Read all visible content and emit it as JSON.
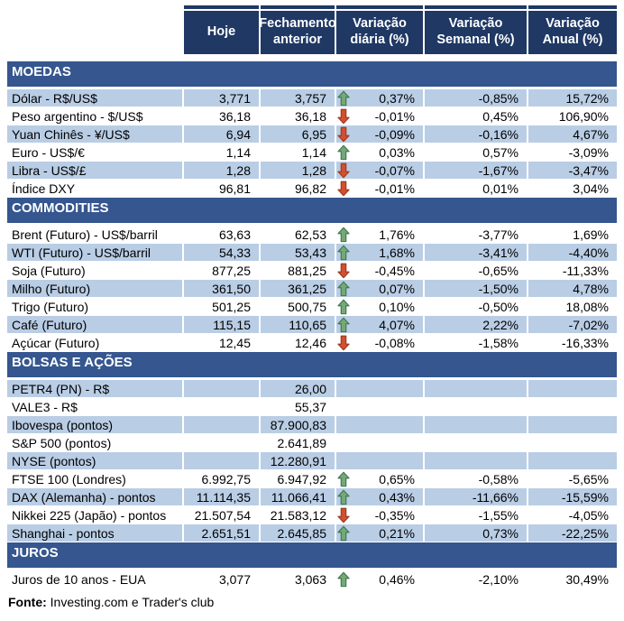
{
  "chart_data": {
    "type": "table",
    "columns": [
      "",
      "Hoje",
      "Fechamento anterior",
      "Variação diária (%)",
      "Variação Semanal (%)",
      "Variação Anual (%)"
    ],
    "sections": [
      {
        "title": "MOEDAS",
        "rows": [
          {
            "label": "Dólar - R$/US$",
            "hoje": "3,771",
            "fechamento": "3,757",
            "arrow": "up",
            "daily": "0,37%",
            "weekly": "-0,85%",
            "annual": "15,72%",
            "shaded": true
          },
          {
            "label": "Peso argentino - $/US$",
            "hoje": "36,18",
            "fechamento": "36,18",
            "arrow": "down",
            "daily": "-0,01%",
            "weekly": "0,45%",
            "annual": "106,90%",
            "shaded": false
          },
          {
            "label": "Yuan Chinês - ¥/US$",
            "hoje": "6,94",
            "fechamento": "6,95",
            "arrow": "down",
            "daily": "-0,09%",
            "weekly": "-0,16%",
            "annual": "4,67%",
            "shaded": true
          },
          {
            "label": "Euro - US$/€",
            "hoje": "1,14",
            "fechamento": "1,14",
            "arrow": "up",
            "daily": "0,03%",
            "weekly": "0,57%",
            "annual": "-3,09%",
            "shaded": false
          },
          {
            "label": "Libra - US$/£",
            "hoje": "1,28",
            "fechamento": "1,28",
            "arrow": "down",
            "daily": "-0,07%",
            "weekly": "-1,67%",
            "annual": "-3,47%",
            "shaded": true
          },
          {
            "label": "Índice DXY",
            "hoje": "96,81",
            "fechamento": "96,82",
            "arrow": "down",
            "daily": "-0,01%",
            "weekly": "0,01%",
            "annual": "3,04%",
            "shaded": false
          }
        ]
      },
      {
        "title": "COMMODITIES",
        "rows": [
          {
            "label": "Brent (Futuro) - US$/barril",
            "hoje": "63,63",
            "fechamento": "62,53",
            "arrow": "up",
            "daily": "1,76%",
            "weekly": "-3,77%",
            "annual": "1,69%",
            "shaded": false
          },
          {
            "label": "WTI (Futuro) - US$/barril",
            "hoje": "54,33",
            "fechamento": "53,43",
            "arrow": "up",
            "daily": "1,68%",
            "weekly": "-3,41%",
            "annual": "-4,40%",
            "shaded": true
          },
          {
            "label": "Soja (Futuro)",
            "hoje": "877,25",
            "fechamento": "881,25",
            "arrow": "down",
            "daily": "-0,45%",
            "weekly": "-0,65%",
            "annual": "-11,33%",
            "shaded": false
          },
          {
            "label": "Milho (Futuro)",
            "hoje": "361,50",
            "fechamento": "361,25",
            "arrow": "up",
            "daily": "0,07%",
            "weekly": "-1,50%",
            "annual": "4,78%",
            "shaded": true
          },
          {
            "label": "Trigo (Futuro)",
            "hoje": "501,25",
            "fechamento": "500,75",
            "arrow": "up",
            "daily": "0,10%",
            "weekly": "-0,50%",
            "annual": "18,08%",
            "shaded": false
          },
          {
            "label": "Café (Futuro)",
            "hoje": "115,15",
            "fechamento": "110,65",
            "arrow": "up",
            "daily": "4,07%",
            "weekly": "2,22%",
            "annual": "-7,02%",
            "shaded": true
          },
          {
            "label": "Açúcar (Futuro)",
            "hoje": "12,45",
            "fechamento": "12,46",
            "arrow": "down",
            "daily": "-0,08%",
            "weekly": "-1,58%",
            "annual": "-16,33%",
            "shaded": false
          }
        ]
      },
      {
        "title": "BOLSAS E AÇÕES",
        "rows": [
          {
            "label": "PETR4 (PN) - R$",
            "hoje": "",
            "fechamento": "26,00",
            "arrow": null,
            "daily": "",
            "weekly": "",
            "annual": "",
            "shaded": true
          },
          {
            "label": "VALE3 - R$",
            "hoje": "",
            "fechamento": "55,37",
            "arrow": null,
            "daily": "",
            "weekly": "",
            "annual": "",
            "shaded": false
          },
          {
            "label": "Ibovespa (pontos)",
            "hoje": "",
            "fechamento": "87.900,83",
            "arrow": null,
            "daily": "",
            "weekly": "",
            "annual": "",
            "shaded": true
          },
          {
            "label": "S&P 500 (pontos)",
            "hoje": "",
            "fechamento": "2.641,89",
            "arrow": null,
            "daily": "",
            "weekly": "",
            "annual": "",
            "shaded": false
          },
          {
            "label": "NYSE (pontos)",
            "hoje": "",
            "fechamento": "12.280,91",
            "arrow": null,
            "daily": "",
            "weekly": "",
            "annual": "",
            "shaded": true
          },
          {
            "label": "FTSE 100 (Londres)",
            "hoje": "6.992,75",
            "fechamento": "6.947,92",
            "arrow": "up",
            "daily": "0,65%",
            "weekly": "-0,58%",
            "annual": "-5,65%",
            "shaded": false
          },
          {
            "label": "DAX (Alemanha) - pontos",
            "hoje": "11.114,35",
            "fechamento": "11.066,41",
            "arrow": "up",
            "daily": "0,43%",
            "weekly": "-11,66%",
            "annual": "-15,59%",
            "shaded": true
          },
          {
            "label": "Nikkei 225 (Japão) - pontos",
            "hoje": "21.507,54",
            "fechamento": "21.583,12",
            "arrow": "down",
            "daily": "-0,35%",
            "weekly": "-1,55%",
            "annual": "-4,05%",
            "shaded": false
          },
          {
            "label": "Shanghai - pontos",
            "hoje": "2.651,51",
            "fechamento": "2.645,85",
            "arrow": "up",
            "daily": "0,21%",
            "weekly": "0,73%",
            "annual": "-22,25%",
            "shaded": true
          }
        ]
      },
      {
        "title": "JUROS",
        "rows": [
          {
            "label": "Juros de 10 anos - EUA",
            "hoje": "3,077",
            "fechamento": "3,063",
            "arrow": "up",
            "daily": "0,46%",
            "weekly": "-2,10%",
            "annual": "30,49%",
            "shaded": false
          }
        ]
      }
    ]
  },
  "footer": {
    "label": "Fonte:",
    "text": " Investing.com e Trader's club"
  },
  "colors": {
    "header_bg": "#1F3864",
    "section_bg": "#35568F",
    "row_shaded": "#B9CDE5",
    "row_plain": "#FFFFFF",
    "header_text": "#FFFFFF",
    "body_text": "#000000",
    "arrow_up_fill": "#76A877",
    "arrow_up_stroke": "#3E7A52",
    "arrow_down_fill": "#D0502F",
    "arrow_down_stroke": "#9C3D20"
  }
}
